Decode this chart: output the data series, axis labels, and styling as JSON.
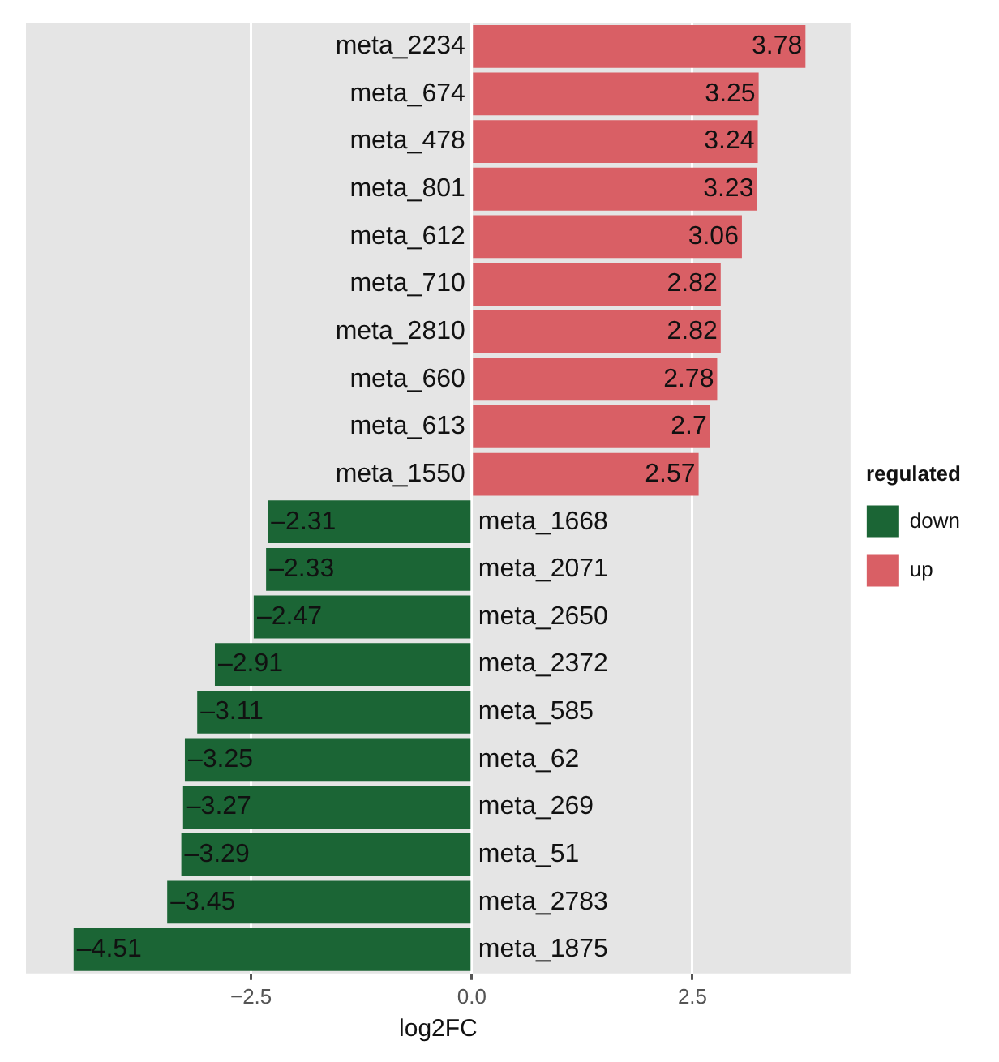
{
  "chart_data": {
    "type": "bar",
    "orientation": "horizontal",
    "xlabel": "log2FC",
    "legend_title": "regulated",
    "legend": "right",
    "grid": "x",
    "categories": [
      "meta_2234",
      "meta_674",
      "meta_478",
      "meta_801",
      "meta_612",
      "meta_710",
      "meta_2810",
      "meta_660",
      "meta_613",
      "meta_1550",
      "meta_1668",
      "meta_2071",
      "meta_2650",
      "meta_2372",
      "meta_585",
      "meta_62",
      "meta_269",
      "meta_51",
      "meta_2783",
      "meta_1875"
    ],
    "series": [
      {
        "name": "down",
        "color": "#1b6535",
        "values": [
          null,
          null,
          null,
          null,
          null,
          null,
          null,
          null,
          null,
          null,
          -2.31,
          -2.33,
          -2.47,
          -2.91,
          -3.11,
          -3.25,
          -3.27,
          -3.29,
          -3.45,
          -4.51
        ],
        "value_labels": [
          null,
          null,
          null,
          null,
          null,
          null,
          null,
          null,
          null,
          null,
          "–2.31",
          "–2.33",
          "–2.47",
          "–2.91",
          "–3.11",
          "–3.25",
          "–3.27",
          "–3.29",
          "–3.45",
          "–4.51"
        ]
      },
      {
        "name": "up",
        "color": "#d95f65",
        "values": [
          3.78,
          3.25,
          3.24,
          3.23,
          3.06,
          2.82,
          2.82,
          2.78,
          2.7,
          2.57,
          null,
          null,
          null,
          null,
          null,
          null,
          null,
          null,
          null,
          null
        ],
        "value_labels": [
          "3.78",
          "3.25",
          "3.24",
          "3.23",
          "3.06",
          "2.82",
          "2.82",
          "2.78",
          "2.7",
          "2.57",
          null,
          null,
          null,
          null,
          null,
          null,
          null,
          null,
          null,
          null
        ]
      }
    ],
    "xlim": [
      -5.05,
      4.29
    ],
    "xticks": [
      {
        "value": -2.5,
        "label": "−2.5"
      },
      {
        "value": 0,
        "label": "0.0"
      },
      {
        "value": 2.5,
        "label": "2.5"
      }
    ]
  }
}
